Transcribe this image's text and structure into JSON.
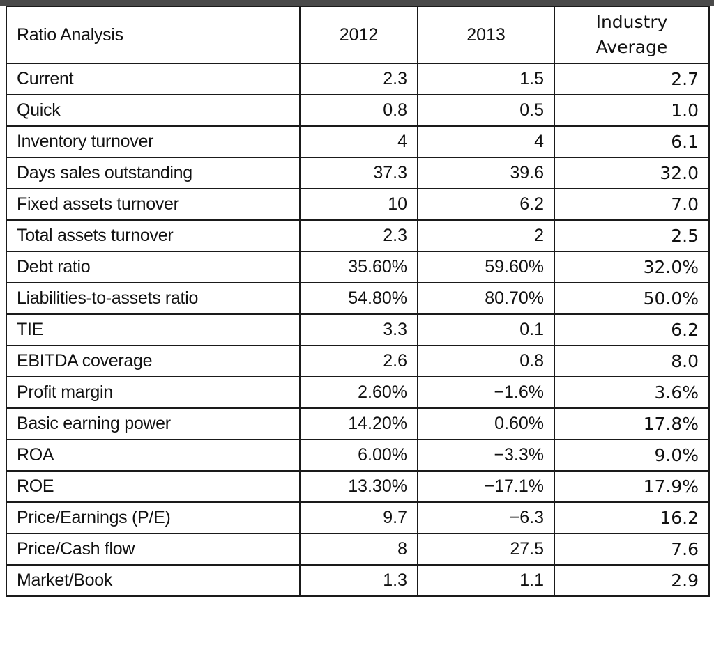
{
  "table": {
    "headers": {
      "label": "Ratio Analysis",
      "col2012": "2012",
      "col2013": "2013",
      "industry_line1": "Industry",
      "industry_line2": "Average"
    },
    "rows": [
      {
        "label": "Current",
        "y2012": "2.3",
        "y2013": "1.5",
        "industry": "2.7"
      },
      {
        "label": "Quick",
        "y2012": "0.8",
        "y2013": "0.5",
        "industry": "1.0"
      },
      {
        "label": "Inventory turnover",
        "y2012": "4",
        "y2013": "4",
        "industry": "6.1"
      },
      {
        "label": "Days sales outstanding",
        "y2012": "37.3",
        "y2013": "39.6",
        "industry": "32.0"
      },
      {
        "label": "Fixed assets turnover",
        "y2012": "10",
        "y2013": "6.2",
        "industry": "7.0"
      },
      {
        "label": "Total assets turnover",
        "y2012": "2.3",
        "y2013": "2",
        "industry": "2.5"
      },
      {
        "label": "Debt ratio",
        "y2012": "35.60%",
        "y2013": "59.60%",
        "industry": "32.0%"
      },
      {
        "label": "Liabilities-to-assets ratio",
        "y2012": "54.80%",
        "y2013": "80.70%",
        "industry": "50.0%"
      },
      {
        "label": "TIE",
        "y2012": "3.3",
        "y2013": "0.1",
        "industry": "6.2"
      },
      {
        "label": "EBITDA coverage",
        "y2012": "2.6",
        "y2013": "0.8",
        "industry": "8.0"
      },
      {
        "label": "Profit margin",
        "y2012": "2.60%",
        "y2013": "−1.6%",
        "industry": "3.6%"
      },
      {
        "label": "Basic earning power",
        "y2012": "14.20%",
        "y2013": "0.60%",
        "industry": "17.8%"
      },
      {
        "label": "ROA",
        "y2012": "6.00%",
        "y2013": "−3.3%",
        "industry": "9.0%"
      },
      {
        "label": "ROE",
        "y2012": "13.30%",
        "y2013": "−17.1%",
        "industry": "17.9%"
      },
      {
        "label": "Price/Earnings (P/E)",
        "y2012": "9.7",
        "y2013": "−6.3",
        "industry": "16.2"
      },
      {
        "label": "Price/Cash flow",
        "y2012": "8",
        "y2013": "27.5",
        "industry": "7.6"
      },
      {
        "label": "Market/Book",
        "y2012": "1.3",
        "y2013": "1.1",
        "industry": "2.9"
      }
    ]
  }
}
